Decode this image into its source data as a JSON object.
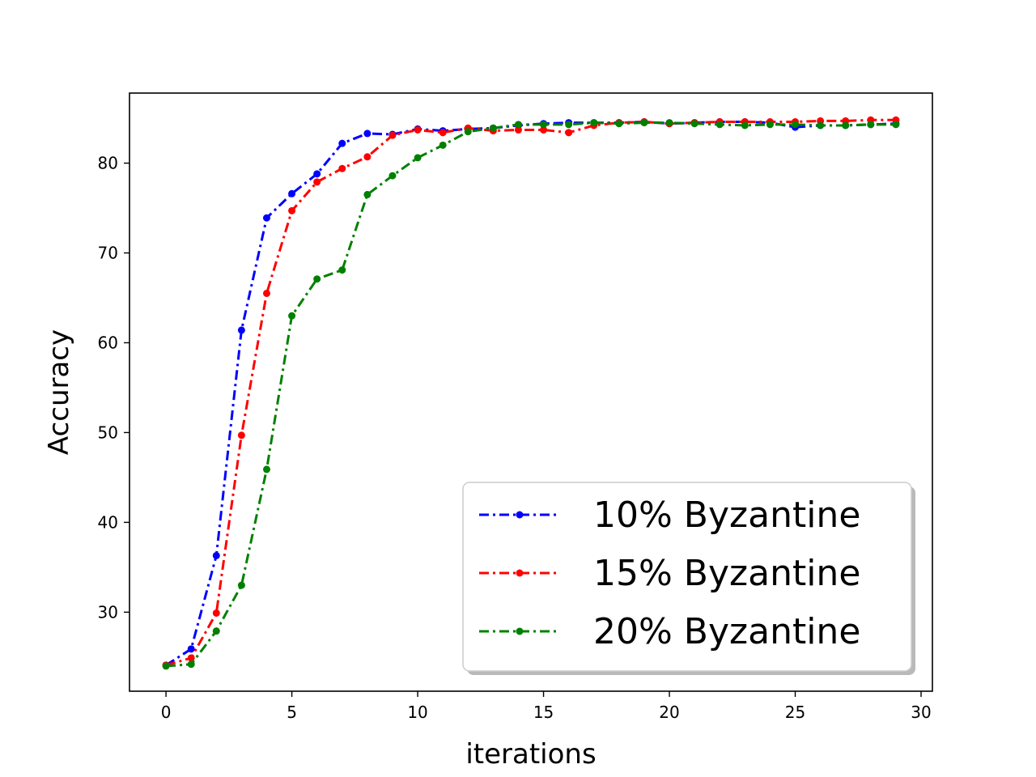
{
  "chart_data": {
    "type": "line",
    "title": "",
    "xlabel": "iterations",
    "ylabel": "Accuracy",
    "xlim": [
      -1.45,
      30.45
    ],
    "ylim": [
      21.2,
      87.8
    ],
    "x_ticks": [
      0,
      5,
      10,
      15,
      20,
      25,
      30
    ],
    "y_ticks": [
      30,
      40,
      50,
      60,
      70,
      80
    ],
    "grid": false,
    "legend_position": "lower-right",
    "x": [
      0,
      1,
      2,
      3,
      4,
      5,
      6,
      7,
      8,
      9,
      10,
      11,
      12,
      13,
      14,
      15,
      16,
      17,
      18,
      19,
      20,
      21,
      22,
      23,
      24,
      25,
      26,
      27,
      28,
      29
    ],
    "series": [
      {
        "name": "10% Byzantine",
        "color": "#0000ff",
        "line_style": "dash-dot",
        "marker": "dot",
        "values": [
          24.1,
          25.9,
          36.3,
          61.4,
          73.9,
          76.6,
          78.8,
          82.2,
          83.3,
          83.2,
          83.8,
          83.6,
          83.8,
          83.9,
          84.2,
          84.4,
          84.5,
          84.5,
          84.5,
          84.6,
          84.4,
          84.5,
          84.6,
          84.6,
          84.5,
          84.0,
          84.2,
          84.2,
          84.3,
          84.4
        ]
      },
      {
        "name": "15% Byzantine",
        "color": "#ff0000",
        "line_style": "dash-dot",
        "marker": "dot",
        "values": [
          24.1,
          24.9,
          29.9,
          49.7,
          65.5,
          74.7,
          77.9,
          79.4,
          80.7,
          83.1,
          83.7,
          83.4,
          83.9,
          83.6,
          83.7,
          83.7,
          83.4,
          84.2,
          84.5,
          84.6,
          84.4,
          84.5,
          84.6,
          84.6,
          84.6,
          84.6,
          84.7,
          84.7,
          84.8,
          84.8
        ]
      },
      {
        "name": "20% Byzantine",
        "color": "#008000",
        "line_style": "dash-dot",
        "marker": "dot",
        "values": [
          24.0,
          24.2,
          27.9,
          33.0,
          45.9,
          63.0,
          67.1,
          68.1,
          76.5,
          78.6,
          80.6,
          82.0,
          83.5,
          83.9,
          84.3,
          84.3,
          84.3,
          84.5,
          84.4,
          84.5,
          84.5,
          84.4,
          84.3,
          84.2,
          84.3,
          84.3,
          84.2,
          84.2,
          84.3,
          84.3
        ]
      }
    ]
  }
}
